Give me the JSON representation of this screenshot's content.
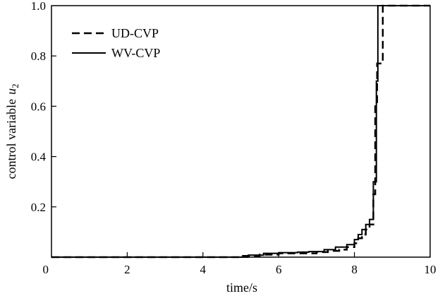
{
  "chart_data": {
    "type": "line",
    "title": "",
    "xlabel": "time/s",
    "ylabel": "control  variable",
    "ylabel_symbol": "u",
    "ylabel_subscript": "2",
    "xlim": [
      0,
      10
    ],
    "ylim": [
      0,
      1.0
    ],
    "x_ticks": [
      "0",
      "2",
      "4",
      "6",
      "8",
      "10"
    ],
    "y_ticks": [
      "0.2",
      "0.4",
      "0.6",
      "0.8",
      "1.0"
    ],
    "grid": false,
    "legend_position": "top-left",
    "series": [
      {
        "name": "UD-CVP",
        "style": "dashed",
        "color": "#000000",
        "step": true,
        "x": [
          0,
          4.5,
          5.0,
          5.5,
          6.0,
          6.5,
          7.0,
          7.3,
          7.6,
          7.8,
          8.0,
          8.1,
          8.2,
          8.3,
          8.4,
          8.5,
          8.55,
          8.6,
          8.75,
          8.8,
          10.0
        ],
        "y": [
          0,
          0,
          0.005,
          0.01,
          0.015,
          0.015,
          0.02,
          0.025,
          0.03,
          0.04,
          0.055,
          0.075,
          0.09,
          0.11,
          0.13,
          0.25,
          0.6,
          0.77,
          1.0,
          1.0,
          1.0
        ]
      },
      {
        "name": "WV-CVP",
        "style": "solid",
        "color": "#000000",
        "step": true,
        "x": [
          0,
          4.8,
          5.2,
          5.6,
          6.0,
          6.5,
          6.8,
          7.2,
          7.5,
          7.8,
          8.0,
          8.1,
          8.2,
          8.3,
          8.4,
          8.5,
          8.58,
          8.62,
          10.0
        ],
        "y": [
          0,
          0,
          0.008,
          0.015,
          0.018,
          0.02,
          0.022,
          0.03,
          0.04,
          0.05,
          0.07,
          0.09,
          0.11,
          0.13,
          0.15,
          0.3,
          0.7,
          1.0,
          1.0
        ]
      }
    ]
  }
}
